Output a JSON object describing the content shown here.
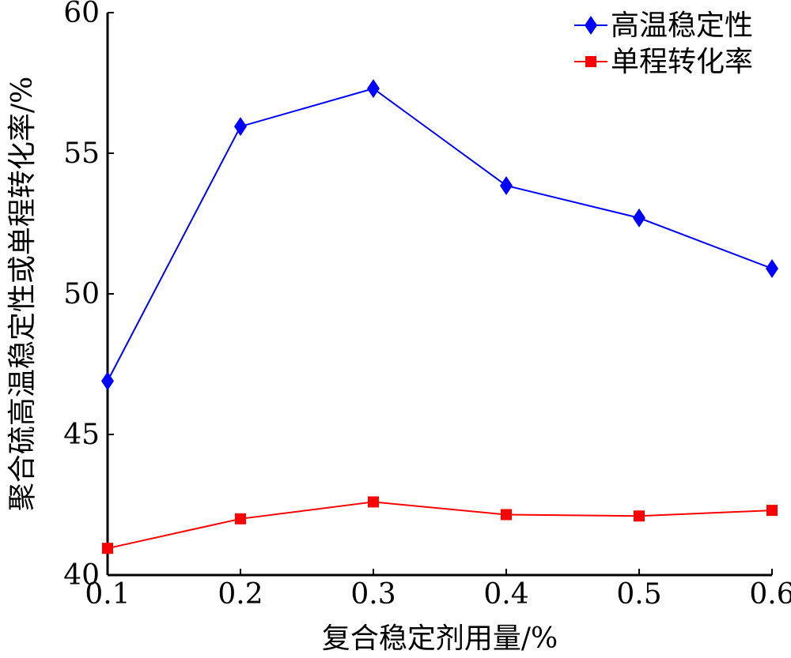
{
  "chart_data": {
    "type": "line",
    "xlabel": "复合稳定剂用量/%",
    "ylabel": "聚合硫高温稳定性或单程转化率/%",
    "xlim": [
      0.1,
      0.6
    ],
    "ylim": [
      40,
      60
    ],
    "xticks": [
      "0.1",
      "0.2",
      "0.3",
      "0.4",
      "0.5",
      "0.6"
    ],
    "yticks": [
      "40",
      "45",
      "50",
      "55",
      "60"
    ],
    "grid": false,
    "legend_position": "top-right",
    "x": [
      0.1,
      0.2,
      0.3,
      0.4,
      0.5,
      0.6
    ],
    "series": [
      {
        "name": "高温稳定性",
        "values": [
          46.9,
          55.95,
          57.3,
          53.85,
          52.7,
          50.9
        ],
        "color": "#0000ff",
        "marker": "diamond"
      },
      {
        "name": "单程转化率",
        "values": [
          40.95,
          42.0,
          42.6,
          42.15,
          42.1,
          42.3
        ],
        "color": "#ff0000",
        "marker": "square"
      }
    ]
  }
}
